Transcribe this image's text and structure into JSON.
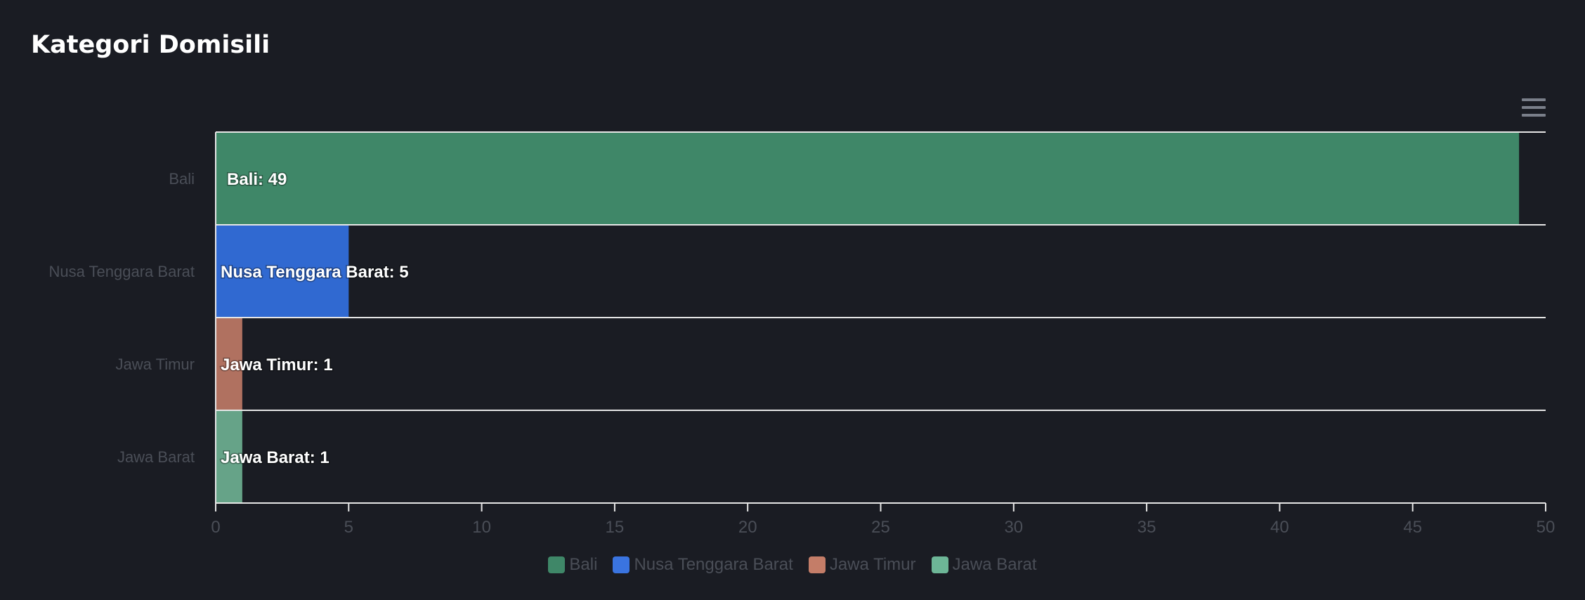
{
  "card": {
    "title": "Kategori Domisili"
  },
  "toolbar": {
    "menu_icon": "hamburger-menu-icon"
  },
  "chart_data": {
    "type": "bar",
    "orientation": "horizontal",
    "categories": [
      "Bali",
      "Nusa Tenggara Barat",
      "Jawa Timur",
      "Jawa Barat"
    ],
    "values": [
      49,
      5,
      1,
      1
    ],
    "data_labels": [
      "Bali: 49",
      "Nusa Tenggara Barat: 5",
      "Jawa Timur: 1",
      "Jawa Barat: 1"
    ],
    "colors": [
      "#3f8768",
      "#3069d1",
      "#b07160",
      "#66a388"
    ],
    "xlim": [
      0,
      50
    ],
    "x_ticks": [
      "0",
      "5",
      "10",
      "15",
      "20",
      "25",
      "30",
      "35",
      "40",
      "45",
      "50"
    ],
    "grid": true,
    "legend": {
      "position": "bottom-center",
      "entries": [
        "Bali",
        "Nusa Tenggara Barat",
        "Jawa Timur",
        "Jawa Barat"
      ],
      "colors": [
        "#3f8768",
        "#3a74e0",
        "#c47d68",
        "#6db697"
      ]
    }
  }
}
